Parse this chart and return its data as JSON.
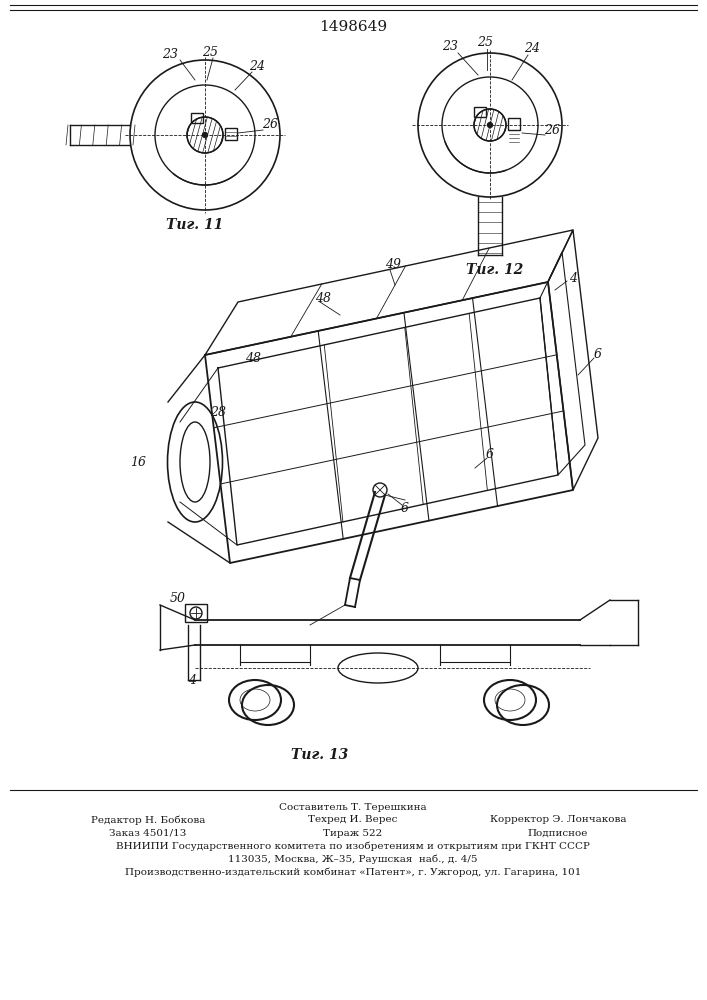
{
  "patent_number": "1498649",
  "background_color": "#ffffff",
  "line_color": "#1a1a1a",
  "fig_width": 7.07,
  "fig_height": 10.0,
  "footer_lines": [
    "Составитель Т. Терешкина",
    "Редактор Н. Бобкова",
    "Техред И. Верес",
    "Корректор Э. Лончакова",
    "Заказ 4501/13",
    "Тираж 522",
    "Подписное",
    "ВНИИПИ Государственного комитета по изобретениям и открытиям при ГКНТ СССР",
    "113035, Москва, Ж–35, Раушская  наб., д. 4/5",
    "Производственно-издательский комбинат «Патент», г. Ужгород, ул. Гагарина, 101"
  ]
}
